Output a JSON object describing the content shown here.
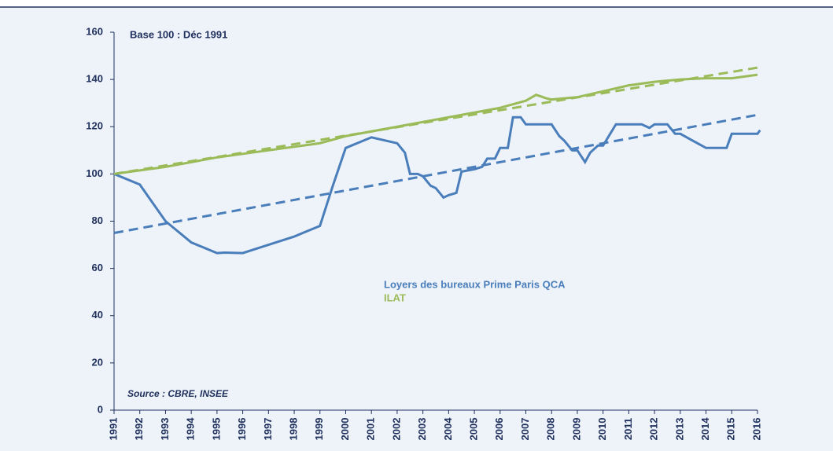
{
  "chart_data": {
    "type": "line",
    "annotations": [
      "Base 100 : Déc 1991",
      "Source : CBRE, INSEE"
    ],
    "xlim": [
      1991,
      2016
    ],
    "xticks": [
      1991,
      1992,
      1993,
      1994,
      1995,
      1996,
      1997,
      1998,
      1999,
      2000,
      2001,
      2002,
      2003,
      2004,
      2005,
      2006,
      2007,
      2008,
      2009,
      2010,
      2011,
      2012,
      2013,
      2014,
      2015,
      2016
    ],
    "ylim": [
      0,
      160
    ],
    "yticks": [
      0,
      20,
      40,
      60,
      80,
      100,
      120,
      140,
      160
    ],
    "grid": false,
    "legend": "center",
    "series": [
      {
        "name": "Loyers des bureaux Prime Paris QCA",
        "color": "#4a7ebb",
        "x": [
          1991,
          1992,
          1993,
          1994,
          1995,
          1995.3,
          1996,
          1997,
          1998,
          1999,
          1999.5,
          2000,
          2001,
          2002,
          2002.3,
          2002.5,
          2002.8,
          2003,
          2003.3,
          2003.5,
          2003.8,
          2004,
          2004.3,
          2004.5,
          2005,
          2005.3,
          2005.5,
          2005.8,
          2006,
          2006.3,
          2006.5,
          2006.8,
          2007,
          2007.5,
          2008,
          2008.3,
          2008.5,
          2008.8,
          2009,
          2009.3,
          2009.5,
          2009.8,
          2010,
          2010.5,
          2011,
          2011.5,
          2011.8,
          2012,
          2012.5,
          2012.8,
          2013,
          2013.5,
          2014,
          2014.5,
          2014.8,
          2015,
          2015.5,
          2016,
          2016.1
        ],
        "values": [
          100,
          95.5,
          80,
          71,
          66.5,
          66.7,
          66.5,
          70,
          73.5,
          78,
          95,
          111,
          115.5,
          113,
          109,
          100,
          100,
          99,
          95,
          94,
          90,
          91,
          92,
          101,
          102,
          103,
          106.5,
          106.5,
          111,
          111,
          124,
          124,
          121,
          121,
          121,
          116,
          114,
          110,
          110,
          105,
          109,
          112,
          112,
          121,
          121,
          121,
          119.5,
          121,
          121,
          117,
          117,
          114,
          111,
          111,
          111,
          117,
          117,
          117,
          118.5
        ]
      },
      {
        "name": "ILAT",
        "color": "#9bbb59",
        "x": [
          1991,
          1992,
          1993,
          1994,
          1995,
          1996,
          1997,
          1998,
          1999,
          2000,
          2001,
          2002,
          2003,
          2004,
          2005,
          2006,
          2007,
          2007.4,
          2007.8,
          2008,
          2009,
          2010,
          2011,
          2012,
          2013,
          2014,
          2014.7,
          2015,
          2016
        ],
        "values": [
          100,
          101.5,
          103,
          105,
          107,
          108.5,
          110,
          111.5,
          113,
          116,
          118,
          120,
          122,
          124,
          126,
          128,
          131,
          133.5,
          132,
          131.5,
          132.5,
          135,
          137.5,
          139,
          140,
          140.5,
          140.5,
          140.5,
          142
        ]
      }
    ],
    "trends": [
      {
        "color": "#4a7ebb",
        "x": [
          1991,
          2016
        ],
        "values": [
          75,
          125
        ]
      },
      {
        "color": "#9bbb59",
        "x": [
          1991,
          2016
        ],
        "values": [
          100,
          145
        ]
      }
    ]
  }
}
